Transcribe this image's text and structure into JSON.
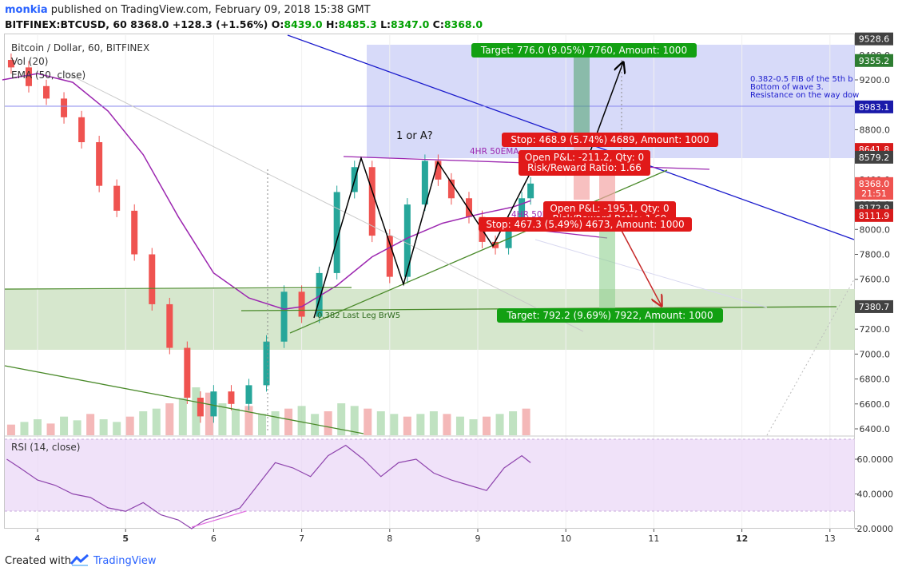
{
  "header": {
    "user": "monkia",
    "published": " published on TradingView.com, February 09, 2018 15:38 GMT",
    "symbol": "BITFINEX:BTCUSD, 60",
    "price": "8368.0",
    "change": "+128.3 (+1.56%)",
    "o_label": "O:",
    "o_val": "8439.0",
    "h_label": "H:",
    "h_val": "8485.3",
    "l_label": "L:",
    "l_val": "8347.0",
    "c_label": "C:",
    "c_val": "8368.0"
  },
  "legend": {
    "title": "Bitcoin / Dollar, 60, BITFINEX",
    "vol": "Vol (20)",
    "ema": "EMA (50, close)",
    "rsi": "RSI (14, close)"
  },
  "annotations": {
    "wave_label": "1 or A?",
    "ema_4hr": "4HR 50EMA",
    "ema_4hr_short": "4HR 50EM",
    "fib_note": [
      "0.382-0.5 FIB of the 5th b",
      "Bottom of wave 3.",
      "Resistance on the way dow"
    ],
    "last_leg": "0.382 Last Leg BrW5",
    "target_long": "Target: 776.0 (9.05%) 7760, Amount: 1000",
    "stop_long": "Stop: 468.9 (5.74%) 4689, Amount: 1000",
    "pnl_long_1": "Open P&L: -211.2, Qty: 0",
    "pnl_long_2": "Risk/Reward Ratio: 1.66",
    "pnl_short_1": "Open P&L: -195.1, Qty: 0",
    "pnl_short_2": "Risk/Reward Ratio: 1.69",
    "stop_short": "Stop: 467.3 (5.49%) 4673, Amount: 1000",
    "target_short": "Target: 792.2 (9.69%) 7922, Amount: 1000"
  },
  "price_badges": [
    {
      "text": "9528.6",
      "value": 9528.6,
      "color": "#424242"
    },
    {
      "text": "9355.2",
      "value": 9355.2,
      "color": "#2e7d32"
    },
    {
      "text": "8983.1",
      "value": 8983.1,
      "color": "#1a1aaa"
    },
    {
      "text": "8641.8",
      "value": 8641.8,
      "color": "#d81b1b"
    },
    {
      "text": "8579.2",
      "value": 8579.2,
      "color": "#424242"
    },
    {
      "text": "8368.0",
      "value": 8368.0,
      "color": "#ef5350"
    },
    {
      "text": "21:51",
      "value": 8290,
      "color": "#ef5350"
    },
    {
      "text": "8172.9",
      "value": 8172.9,
      "color": "#424242"
    },
    {
      "text": "8111.9",
      "value": 8111.9,
      "color": "#d81b1b"
    },
    {
      "text": "7380.7",
      "value": 7380.7,
      "color": "#424242"
    }
  ],
  "chart_data": {
    "type": "candlestick",
    "title": "Bitcoin / Dollar, 60, BITFINEX",
    "x_ticks": [
      "4",
      "5",
      "6",
      "7",
      "8",
      "9",
      "10",
      "11",
      "12",
      "13"
    ],
    "x_tick_bold": [
      false,
      true,
      false,
      false,
      false,
      false,
      false,
      false,
      true,
      false
    ],
    "y_ticks": [
      9400,
      9200,
      9000,
      8800,
      8600,
      8400,
      8200,
      8000,
      7800,
      7600,
      7400,
      7200,
      7000,
      6800,
      6600,
      6400
    ],
    "ylim": [
      6380,
      9650
    ],
    "xlim": [
      3.6,
      13.3
    ],
    "rsi_ticks": [
      "60.0000",
      "40.0000",
      "20.0000"
    ],
    "rsi_ylim": [
      18,
      75
    ],
    "series": [
      {
        "name": "BTCUSD",
        "x": [
          3.7,
          3.9,
          4.1,
          4.3,
          4.5,
          4.7,
          4.9,
          5.1,
          5.3,
          5.5,
          5.7,
          5.85,
          6.0,
          6.2,
          6.4,
          6.6,
          6.8,
          7.0,
          7.2,
          7.4,
          7.6,
          7.8,
          8.0,
          8.2,
          8.4,
          8.55,
          8.7,
          8.9,
          9.05,
          9.2,
          9.35,
          9.5,
          9.6
        ],
        "close": [
          9300,
          9150,
          9050,
          8900,
          8700,
          8350,
          8150,
          7800,
          7400,
          7050,
          6650,
          6500,
          6700,
          6600,
          6750,
          7100,
          7500,
          7300,
          7650,
          8300,
          8500,
          7950,
          7620,
          8200,
          8550,
          8400,
          8250,
          8100,
          7900,
          7850,
          8050,
          8250,
          8368
        ]
      },
      {
        "name": "EMA (50, close)",
        "x": [
          3.6,
          4.0,
          4.4,
          4.8,
          5.2,
          5.6,
          6.0,
          6.4,
          6.8,
          7.0,
          7.4,
          7.8,
          8.2,
          8.6,
          9.0,
          9.4,
          9.6
        ],
        "values": [
          9200,
          9250,
          9180,
          8950,
          8600,
          8100,
          7650,
          7450,
          7360,
          7380,
          7550,
          7780,
          7930,
          8050,
          8120,
          8180,
          8230
        ]
      },
      {
        "name": "RSI (14, close)",
        "x": [
          3.65,
          3.8,
          4.0,
          4.2,
          4.4,
          4.6,
          4.8,
          5.0,
          5.2,
          5.4,
          5.6,
          5.75,
          5.9,
          6.1,
          6.3,
          6.5,
          6.7,
          6.9,
          7.1,
          7.3,
          7.5,
          7.7,
          7.9,
          8.1,
          8.3,
          8.5,
          8.7,
          8.9,
          9.1,
          9.3,
          9.5,
          9.6
        ],
        "values": [
          60,
          55,
          48,
          45,
          40,
          38,
          32,
          30,
          35,
          28,
          25,
          20,
          25,
          28,
          32,
          45,
          58,
          55,
          50,
          62,
          68,
          60,
          50,
          58,
          60,
          52,
          48,
          45,
          42,
          55,
          62,
          58
        ]
      }
    ],
    "volume_x": [
      3.7,
      3.85,
      4.0,
      4.15,
      4.3,
      4.45,
      4.6,
      4.75,
      4.9,
      5.05,
      5.2,
      5.35,
      5.5,
      5.65,
      5.8,
      5.95,
      6.1,
      6.25,
      6.4,
      6.55,
      6.7,
      6.85,
      7.0,
      7.15,
      7.3,
      7.45,
      7.6,
      7.75,
      7.9,
      8.05,
      8.2,
      8.35,
      8.5,
      8.65,
      8.8,
      8.95,
      9.1,
      9.25,
      9.4,
      9.55
    ],
    "volume": [
      20,
      25,
      30,
      22,
      35,
      28,
      40,
      30,
      25,
      35,
      45,
      50,
      60,
      70,
      90,
      80,
      60,
      50,
      55,
      40,
      45,
      50,
      55,
      40,
      45,
      60,
      55,
      50,
      45,
      40,
      35,
      40,
      45,
      40,
      35,
      30,
      35,
      40,
      45,
      50
    ]
  }
}
